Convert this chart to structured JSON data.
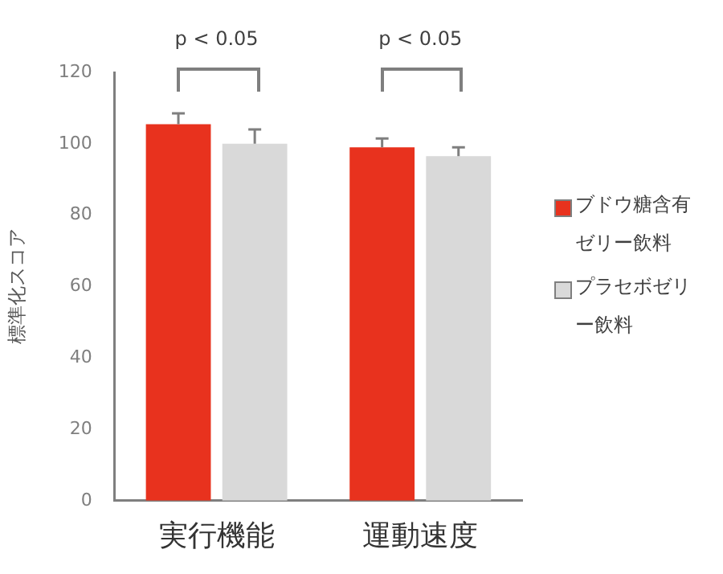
{
  "chart_data": {
    "type": "bar",
    "ylabel": "標準化スコア",
    "categories": [
      "実行機能",
      "運動速度"
    ],
    "series": [
      {
        "name": "ブドウ糖含有ゼリー飲料",
        "color": "#e8321e",
        "values": [
          105.5,
          99
        ],
        "errors": [
          [
            105.5,
            108.5
          ],
          [
            99,
            101.5
          ]
        ]
      },
      {
        "name": "プラセボゼリー飲料",
        "color": "#d9d9d9",
        "values": [
          100,
          96.5
        ],
        "errors": [
          [
            100,
            104
          ],
          [
            96.5,
            99
          ]
        ]
      }
    ],
    "ylim": [
      0,
      120
    ],
    "yticks": [
      0,
      20,
      40,
      60,
      80,
      100,
      120
    ],
    "grid": false,
    "legend": "right",
    "annotations": [
      "p < 0.05",
      "p < 0.05"
    ]
  }
}
